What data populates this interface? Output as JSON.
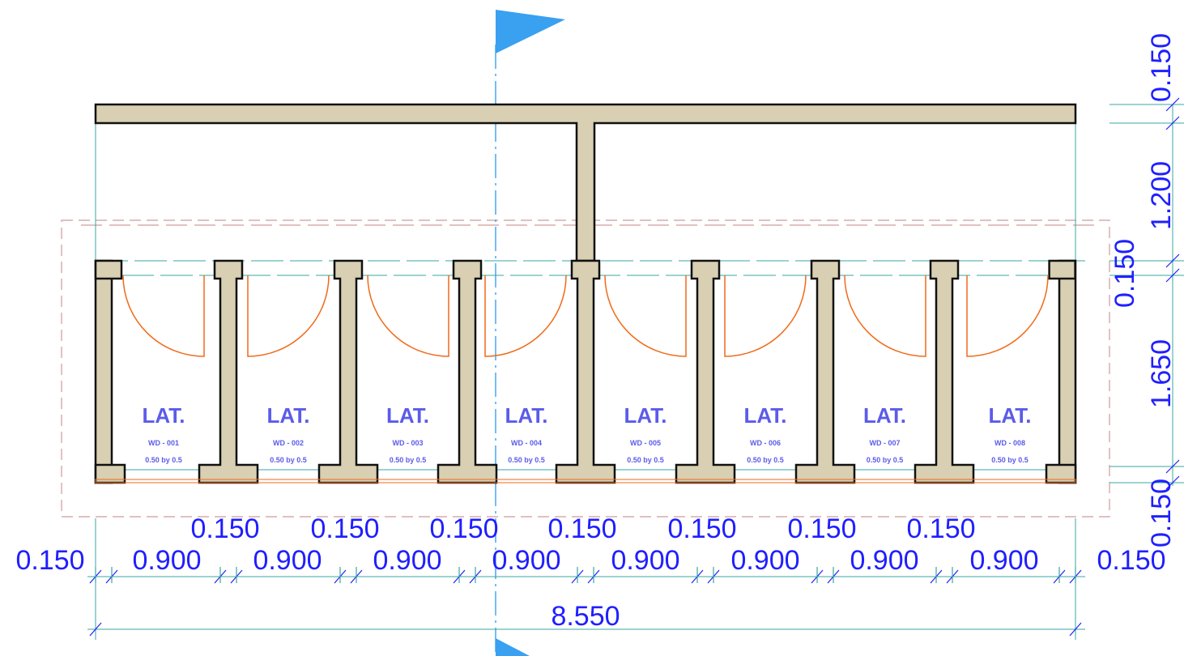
{
  "colors": {
    "wall_fill": "#d9cfb2",
    "wall_stroke": "#111111",
    "dimension": "#1f1fff",
    "guide": "#3aa7a0",
    "door": "#f06a1a",
    "section_marker": "#3aa0f0",
    "room_text": "#5b5bea",
    "boundary": "#c05050"
  },
  "rooms": [
    {
      "label": "LAT.",
      "code": "WD - 001",
      "size": "0.50 by 0.5"
    },
    {
      "label": "LAT.",
      "code": "WD - 002",
      "size": "0.50 by 0.5"
    },
    {
      "label": "LAT.",
      "code": "WD - 003",
      "size": "0.50 by 0.5"
    },
    {
      "label": "LAT.",
      "code": "WD - 004",
      "size": "0.50 by 0.5"
    },
    {
      "label": "LAT.",
      "code": "WD - 005",
      "size": "0.50 by 0.5"
    },
    {
      "label": "LAT.",
      "code": "WD - 006",
      "size": "0.50 by 0.5"
    },
    {
      "label": "LAT.",
      "code": "WD - 007",
      "size": "0.50 by 0.5"
    },
    {
      "label": "LAT.",
      "code": "WD - 008",
      "size": "0.50 by 0.5"
    }
  ],
  "dimensions": {
    "partition_upper": [
      "0.150",
      "0.150",
      "0.150",
      "0.150",
      "0.150",
      "0.150",
      "0.150"
    ],
    "segments_lower": [
      "0.150",
      "0.900",
      "0.900",
      "0.900",
      "0.900",
      "0.900",
      "0.900",
      "0.900",
      "0.900",
      "0.150"
    ],
    "total": "8.550",
    "vertical": [
      "0.150",
      "1.200",
      "0.150",
      "1.650",
      "0.150"
    ]
  }
}
